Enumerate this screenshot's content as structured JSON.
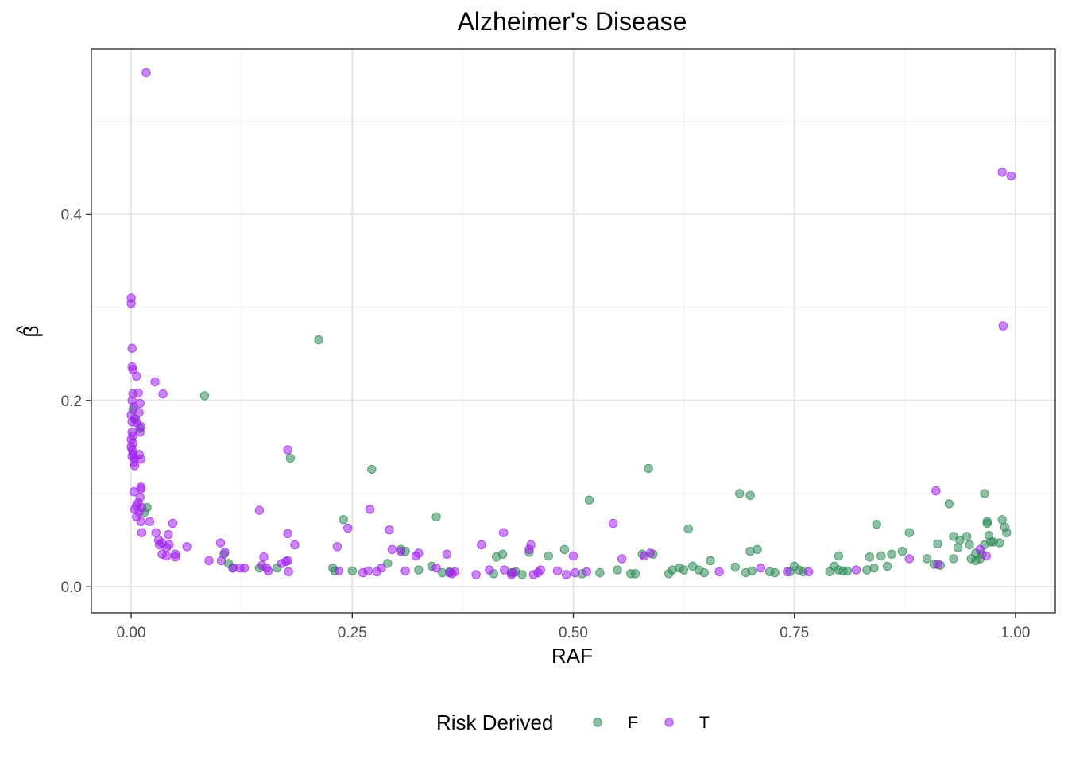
{
  "chart_data": {
    "type": "scatter",
    "title": "Alzheimer's Disease",
    "xlabel": "RAF",
    "ylabel_base": "β",
    "ylabel_hat": "^",
    "xlim": [
      -0.045,
      1.045
    ],
    "ylim": [
      -0.028,
      0.577
    ],
    "x_ticks": [
      0,
      0.25,
      0.5,
      0.75,
      1
    ],
    "x_tick_labels": [
      "0.00",
      "0.25",
      "0.50",
      "0.75",
      "1.00"
    ],
    "y_ticks": [
      0,
      0.2,
      0.4
    ],
    "y_tick_labels": [
      "0.0",
      "0.2",
      "0.4"
    ],
    "grid": true,
    "legend": {
      "title": "Risk Derived",
      "position": "bottom",
      "entries": [
        {
          "label": "F",
          "color": "#2E8B57"
        },
        {
          "label": "T",
          "color": "#A020F0"
        }
      ]
    },
    "series": [
      {
        "name": "F",
        "color": "#2E8B57",
        "points": [
          [
            0.002,
            0.19
          ],
          [
            0.005,
            0.18
          ],
          [
            0.01,
            0.17
          ],
          [
            0.015,
            0.08
          ],
          [
            0.018,
            0.085
          ],
          [
            0.083,
            0.205
          ],
          [
            0.105,
            0.035
          ],
          [
            0.11,
            0.025
          ],
          [
            0.115,
            0.02
          ],
          [
            0.145,
            0.02
          ],
          [
            0.165,
            0.02
          ],
          [
            0.18,
            0.138
          ],
          [
            0.212,
            0.265
          ],
          [
            0.228,
            0.02
          ],
          [
            0.23,
            0.017
          ],
          [
            0.24,
            0.072
          ],
          [
            0.25,
            0.017
          ],
          [
            0.272,
            0.126
          ],
          [
            0.29,
            0.025
          ],
          [
            0.305,
            0.04
          ],
          [
            0.31,
            0.038
          ],
          [
            0.325,
            0.018
          ],
          [
            0.34,
            0.022
          ],
          [
            0.345,
            0.075
          ],
          [
            0.352,
            0.015
          ],
          [
            0.36,
            0.016
          ],
          [
            0.41,
            0.014
          ],
          [
            0.413,
            0.032
          ],
          [
            0.42,
            0.035
          ],
          [
            0.43,
            0.015
          ],
          [
            0.435,
            0.016
          ],
          [
            0.442,
            0.013
          ],
          [
            0.45,
            0.037
          ],
          [
            0.472,
            0.033
          ],
          [
            0.49,
            0.04
          ],
          [
            0.51,
            0.014
          ],
          [
            0.518,
            0.093
          ],
          [
            0.53,
            0.015
          ],
          [
            0.55,
            0.018
          ],
          [
            0.565,
            0.014
          ],
          [
            0.57,
            0.014
          ],
          [
            0.578,
            0.035
          ],
          [
            0.585,
            0.127
          ],
          [
            0.59,
            0.035
          ],
          [
            0.608,
            0.014
          ],
          [
            0.612,
            0.018
          ],
          [
            0.62,
            0.02
          ],
          [
            0.625,
            0.018
          ],
          [
            0.63,
            0.062
          ],
          [
            0.635,
            0.022
          ],
          [
            0.642,
            0.018
          ],
          [
            0.648,
            0.015
          ],
          [
            0.655,
            0.028
          ],
          [
            0.683,
            0.021
          ],
          [
            0.688,
            0.1
          ],
          [
            0.695,
            0.015
          ],
          [
            0.7,
            0.038
          ],
          [
            0.7,
            0.098
          ],
          [
            0.702,
            0.017
          ],
          [
            0.708,
            0.04
          ],
          [
            0.722,
            0.016
          ],
          [
            0.728,
            0.015
          ],
          [
            0.745,
            0.016
          ],
          [
            0.75,
            0.022
          ],
          [
            0.755,
            0.018
          ],
          [
            0.76,
            0.016
          ],
          [
            0.79,
            0.016
          ],
          [
            0.795,
            0.022
          ],
          [
            0.8,
            0.018
          ],
          [
            0.8,
            0.033
          ],
          [
            0.805,
            0.017
          ],
          [
            0.81,
            0.017
          ],
          [
            0.832,
            0.018
          ],
          [
            0.835,
            0.032
          ],
          [
            0.84,
            0.02
          ],
          [
            0.843,
            0.067
          ],
          [
            0.848,
            0.033
          ],
          [
            0.855,
            0.022
          ],
          [
            0.86,
            0.035
          ],
          [
            0.872,
            0.038
          ],
          [
            0.88,
            0.058
          ],
          [
            0.9,
            0.03
          ],
          [
            0.908,
            0.024
          ],
          [
            0.912,
            0.046
          ],
          [
            0.915,
            0.023
          ],
          [
            0.925,
            0.089
          ],
          [
            0.93,
            0.054
          ],
          [
            0.93,
            0.03
          ],
          [
            0.935,
            0.042
          ],
          [
            0.937,
            0.05
          ],
          [
            0.945,
            0.054
          ],
          [
            0.948,
            0.045
          ],
          [
            0.95,
            0.03
          ],
          [
            0.955,
            0.036
          ],
          [
            0.955,
            0.028
          ],
          [
            0.96,
            0.03
          ],
          [
            0.962,
            0.035
          ],
          [
            0.965,
            0.1
          ],
          [
            0.965,
            0.045
          ],
          [
            0.968,
            0.07
          ],
          [
            0.968,
            0.068
          ],
          [
            0.97,
            0.055
          ],
          [
            0.972,
            0.048
          ],
          [
            0.975,
            0.048
          ],
          [
            0.982,
            0.047
          ],
          [
            0.985,
            0.072
          ],
          [
            0.988,
            0.064
          ],
          [
            0.99,
            0.058
          ]
        ]
      },
      {
        "name": "T",
        "color": "#A020F0",
        "points": [
          [
            0.017,
            0.552
          ],
          [
            0.0,
            0.31
          ],
          [
            0.0,
            0.304
          ],
          [
            0.001,
            0.256
          ],
          [
            0.001,
            0.236
          ],
          [
            0.002,
            0.233
          ],
          [
            0.006,
            0.226
          ],
          [
            0.027,
            0.22
          ],
          [
            0.002,
            0.207
          ],
          [
            0.008,
            0.208
          ],
          [
            0.036,
            0.207
          ],
          [
            0.001,
            0.2
          ],
          [
            0.01,
            0.197
          ],
          [
            0.003,
            0.193
          ],
          [
            0.009,
            0.187
          ],
          [
            0.0,
            0.184
          ],
          [
            0.004,
            0.18
          ],
          [
            0.001,
            0.177
          ],
          [
            0.006,
            0.176
          ],
          [
            0.011,
            0.172
          ],
          [
            0.001,
            0.166
          ],
          [
            0.01,
            0.166
          ],
          [
            0.002,
            0.162
          ],
          [
            0.0,
            0.158
          ],
          [
            0.002,
            0.154
          ],
          [
            0.0,
            0.15
          ],
          [
            0.001,
            0.147
          ],
          [
            0.002,
            0.143
          ],
          [
            0.009,
            0.142
          ],
          [
            0.001,
            0.14
          ],
          [
            0.004,
            0.138
          ],
          [
            0.011,
            0.137
          ],
          [
            0.003,
            0.134
          ],
          [
            0.004,
            0.13
          ],
          [
            0.011,
            0.107
          ],
          [
            0.011,
            0.105
          ],
          [
            0.003,
            0.102
          ],
          [
            0.01,
            0.096
          ],
          [
            0.008,
            0.09
          ],
          [
            0.006,
            0.087
          ],
          [
            0.012,
            0.085
          ],
          [
            0.004,
            0.083
          ],
          [
            0.009,
            0.08
          ],
          [
            0.006,
            0.075
          ],
          [
            0.011,
            0.07
          ],
          [
            0.021,
            0.07
          ],
          [
            0.012,
            0.058
          ],
          [
            0.028,
            0.058
          ],
          [
            0.031,
            0.05
          ],
          [
            0.032,
            0.045
          ],
          [
            0.035,
            0.047
          ],
          [
            0.04,
            0.042
          ],
          [
            0.035,
            0.035
          ],
          [
            0.04,
            0.033
          ],
          [
            0.043,
            0.045
          ],
          [
            0.042,
            0.056
          ],
          [
            0.047,
            0.068
          ],
          [
            0.05,
            0.035
          ],
          [
            0.05,
            0.032
          ],
          [
            0.063,
            0.043
          ],
          [
            0.088,
            0.028
          ],
          [
            0.101,
            0.047
          ],
          [
            0.102,
            0.028
          ],
          [
            0.106,
            0.037
          ],
          [
            0.115,
            0.02
          ],
          [
            0.123,
            0.02
          ],
          [
            0.128,
            0.02
          ],
          [
            0.145,
            0.082
          ],
          [
            0.148,
            0.023
          ],
          [
            0.15,
            0.032
          ],
          [
            0.153,
            0.02
          ],
          [
            0.155,
            0.017
          ],
          [
            0.17,
            0.025
          ],
          [
            0.175,
            0.027
          ],
          [
            0.177,
            0.057
          ],
          [
            0.177,
            0.147
          ],
          [
            0.177,
            0.028
          ],
          [
            0.178,
            0.016
          ],
          [
            0.185,
            0.045
          ],
          [
            0.233,
            0.043
          ],
          [
            0.235,
            0.017
          ],
          [
            0.245,
            0.063
          ],
          [
            0.262,
            0.015
          ],
          [
            0.268,
            0.017
          ],
          [
            0.27,
            0.083
          ],
          [
            0.278,
            0.016
          ],
          [
            0.283,
            0.02
          ],
          [
            0.292,
            0.061
          ],
          [
            0.295,
            0.04
          ],
          [
            0.305,
            0.038
          ],
          [
            0.31,
            0.017
          ],
          [
            0.322,
            0.033
          ],
          [
            0.325,
            0.036
          ],
          [
            0.345,
            0.02
          ],
          [
            0.357,
            0.035
          ],
          [
            0.36,
            0.015
          ],
          [
            0.363,
            0.014
          ],
          [
            0.366,
            0.016
          ],
          [
            0.39,
            0.013
          ],
          [
            0.396,
            0.045
          ],
          [
            0.405,
            0.018
          ],
          [
            0.421,
            0.058
          ],
          [
            0.422,
            0.018
          ],
          [
            0.43,
            0.013
          ],
          [
            0.432,
            0.015
          ],
          [
            0.45,
            0.04
          ],
          [
            0.452,
            0.045
          ],
          [
            0.455,
            0.013
          ],
          [
            0.46,
            0.015
          ],
          [
            0.463,
            0.018
          ],
          [
            0.482,
            0.017
          ],
          [
            0.492,
            0.013
          ],
          [
            0.5,
            0.033
          ],
          [
            0.502,
            0.015
          ],
          [
            0.515,
            0.016
          ],
          [
            0.545,
            0.068
          ],
          [
            0.555,
            0.03
          ],
          [
            0.58,
            0.033
          ],
          [
            0.587,
            0.036
          ],
          [
            0.665,
            0.016
          ],
          [
            0.712,
            0.02
          ],
          [
            0.742,
            0.016
          ],
          [
            0.766,
            0.016
          ],
          [
            0.82,
            0.018
          ],
          [
            0.88,
            0.03
          ],
          [
            0.91,
            0.103
          ],
          [
            0.912,
            0.024
          ],
          [
            0.96,
            0.04
          ],
          [
            0.967,
            0.033
          ],
          [
            0.985,
            0.445
          ],
          [
            0.995,
            0.441
          ],
          [
            0.986,
            0.28
          ]
        ]
      }
    ]
  }
}
